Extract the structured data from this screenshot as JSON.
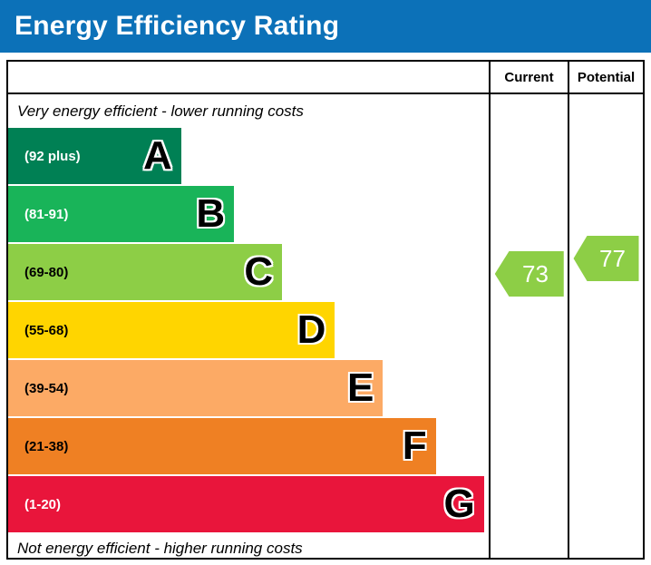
{
  "header": {
    "title": "Energy Efficiency Rating",
    "bg_color": "#0c71b8",
    "text_color": "#ffffff"
  },
  "columns": {
    "current": "Current",
    "potential": "Potential"
  },
  "chart": {
    "top_note": "Very energy efficient - lower running costs",
    "bottom_note": "Not energy efficient - higher running costs",
    "bands": [
      {
        "letter": "A",
        "range": "(92 plus)",
        "color": "#008054",
        "text_color": "#ffffff",
        "width_pct": 36
      },
      {
        "letter": "B",
        "range": "(81-91)",
        "color": "#19b459",
        "text_color": "#ffffff",
        "width_pct": 47
      },
      {
        "letter": "C",
        "range": "(69-80)",
        "color": "#8dce46",
        "text_color": "#000000",
        "width_pct": 57
      },
      {
        "letter": "D",
        "range": "(55-68)",
        "color": "#ffd500",
        "text_color": "#000000",
        "width_pct": 68
      },
      {
        "letter": "E",
        "range": "(39-54)",
        "color": "#fcaa65",
        "text_color": "#000000",
        "width_pct": 78
      },
      {
        "letter": "F",
        "range": "(21-38)",
        "color": "#ef8023",
        "text_color": "#000000",
        "width_pct": 89
      },
      {
        "letter": "G",
        "range": "(1-20)",
        "color": "#e9153b",
        "text_color": "#ffffff",
        "width_pct": 99
      }
    ],
    "current": {
      "value": "73",
      "color": "#8dce46"
    },
    "potential": {
      "value": "77",
      "color": "#8dce46"
    }
  },
  "chart_data": {
    "type": "bar",
    "title": "Energy Efficiency Rating",
    "categories": [
      "A (92 plus)",
      "B (81-91)",
      "C (69-80)",
      "D (55-68)",
      "E (39-54)",
      "F (21-38)",
      "G (1-20)"
    ],
    "values": [
      36,
      47,
      57,
      68,
      78,
      89,
      99
    ],
    "band_colors": [
      "#008054",
      "#19b459",
      "#8dce46",
      "#ffd500",
      "#fcaa65",
      "#ef8023",
      "#e9153b"
    ],
    "current": 73,
    "potential": 77,
    "current_band": "C",
    "potential_band": "C",
    "xlim": [
      1,
      100
    ],
    "legend_position": "none",
    "annotations": [
      "Very energy efficient - lower running costs",
      "Not energy efficient - higher running costs"
    ]
  }
}
